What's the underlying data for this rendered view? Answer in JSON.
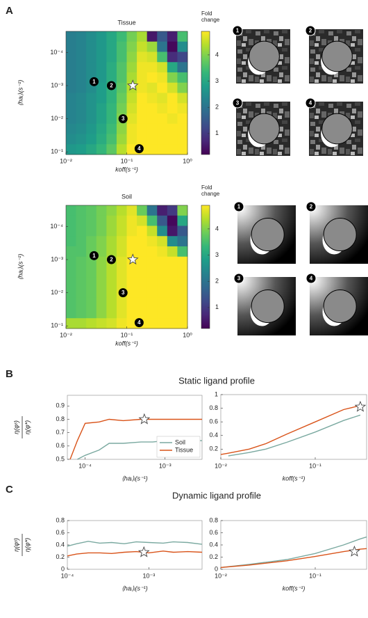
{
  "panels": [
    "A",
    "B",
    "C"
  ],
  "section_titles": [
    "Static ligand profile",
    "Dynamic ligand profile"
  ],
  "thumbnails": {
    "tissue": [
      "1",
      "2",
      "3",
      "4"
    ],
    "soil": [
      "1",
      "2",
      "3",
      "4"
    ]
  },
  "chart_data": [
    {
      "type": "heatmap",
      "title": "Tissue",
      "x_label": "koff(s⁻¹)",
      "y_label": "⟨haᵢ⟩ᵢ(s⁻¹)",
      "xscale": "log",
      "yscale": "log",
      "y_inverted": true,
      "xlim": [
        0.01,
        1
      ],
      "ylim": [
        2.3e-05,
        0.12
      ],
      "xticks": [
        {
          "value": 0.01,
          "label": "10⁻²"
        },
        {
          "value": 0.1,
          "label": "10⁻¹"
        },
        {
          "value": 1,
          "label": "10⁰"
        }
      ],
      "yticks": [
        {
          "value": 0.0001,
          "label": "10⁻⁴"
        },
        {
          "value": 0.001,
          "label": "10⁻³"
        },
        {
          "value": 0.01,
          "label": "10⁻²"
        },
        {
          "value": 0.1,
          "label": "10⁻¹"
        }
      ],
      "colorbar": {
        "label": "Fold change",
        "zlim": [
          0.2,
          4.9
        ],
        "ticks": [
          1,
          2,
          3,
          4
        ],
        "colormap": "viridis"
      },
      "z": [
        [
          2.2,
          2.3,
          2.5,
          2.7,
          3.0,
          3.4,
          3.9,
          4.3,
          0.5,
          1.5,
          0.6,
          3.5
        ],
        [
          2.2,
          2.3,
          2.5,
          2.7,
          3.0,
          3.5,
          4.0,
          4.5,
          4.2,
          2.0,
          0.3,
          2.5
        ],
        [
          2.2,
          2.3,
          2.5,
          2.7,
          3.0,
          3.5,
          4.1,
          4.7,
          4.6,
          3.5,
          0.8,
          1.2
        ],
        [
          2.2,
          2.3,
          2.5,
          2.7,
          3.1,
          3.6,
          4.2,
          4.8,
          4.8,
          4.6,
          3.0,
          2.0
        ],
        [
          2.2,
          2.3,
          2.5,
          2.7,
          3.1,
          3.6,
          4.3,
          4.8,
          4.9,
          4.8,
          4.0,
          3.5
        ],
        [
          2.2,
          2.3,
          2.5,
          2.8,
          3.2,
          3.7,
          4.4,
          4.8,
          4.7,
          4.9,
          4.6,
          4.0
        ],
        [
          2.3,
          2.4,
          2.6,
          2.8,
          3.2,
          3.8,
          4.5,
          4.9,
          4.8,
          4.7,
          4.9,
          4.6
        ],
        [
          2.3,
          2.4,
          2.6,
          2.9,
          3.3,
          3.9,
          4.6,
          4.9,
          4.9,
          4.8,
          4.9,
          4.8
        ],
        [
          2.3,
          2.4,
          2.6,
          2.9,
          3.3,
          4.0,
          4.7,
          4.9,
          4.9,
          4.9,
          4.8,
          4.9
        ],
        [
          2.4,
          2.5,
          2.7,
          3.0,
          3.4,
          4.1,
          4.8,
          4.9,
          4.9,
          4.9,
          4.9,
          4.9
        ],
        [
          2.5,
          2.6,
          2.8,
          3.1,
          3.5,
          4.2,
          4.8,
          4.9,
          4.9,
          4.9,
          4.9,
          4.9
        ],
        [
          2.7,
          2.8,
          3.0,
          3.3,
          3.7,
          4.4,
          4.9,
          4.9,
          4.9,
          4.9,
          4.9,
          4.9
        ]
      ],
      "points": [
        {
          "label": "1",
          "x": 0.029,
          "y": 0.00076
        },
        {
          "label": "2",
          "x": 0.056,
          "y": 0.001
        },
        {
          "label": "3",
          "x": 0.087,
          "y": 0.01
        },
        {
          "label": "4",
          "x": 0.16,
          "y": 0.08
        }
      ],
      "star": {
        "x": 0.126,
        "y": 0.001
      }
    },
    {
      "type": "heatmap",
      "title": "Soil",
      "x_label": "koff(s⁻¹)",
      "y_label": "⟨haᵢ⟩ᵢ(s⁻¹)",
      "xscale": "log",
      "yscale": "log",
      "y_inverted": true,
      "xlim": [
        0.01,
        1
      ],
      "ylim": [
        2.3e-05,
        0.12
      ],
      "xticks": [
        {
          "value": 0.01,
          "label": "10⁻²"
        },
        {
          "value": 0.1,
          "label": "10⁻¹"
        },
        {
          "value": 1,
          "label": "10⁰"
        }
      ],
      "yticks": [
        {
          "value": 0.0001,
          "label": "10⁻⁴"
        },
        {
          "value": 0.001,
          "label": "10⁻³"
        },
        {
          "value": 0.01,
          "label": "10⁻²"
        },
        {
          "value": 0.1,
          "label": "10⁻¹"
        }
      ],
      "colorbar": {
        "label": "Fold change",
        "zlim": [
          0.2,
          4.9
        ],
        "ticks": [
          1,
          2,
          3,
          4
        ],
        "colormap": "viridis"
      },
      "z": [
        [
          3.5,
          3.6,
          3.7,
          3.9,
          4.1,
          4.4,
          4.7,
          3.8,
          2.0,
          0.6,
          1.0,
          4.0
        ],
        [
          3.5,
          3.6,
          3.7,
          3.9,
          4.2,
          4.5,
          4.8,
          4.6,
          3.5,
          1.5,
          0.3,
          3.0
        ],
        [
          3.5,
          3.6,
          3.7,
          3.9,
          4.2,
          4.5,
          4.8,
          4.9,
          4.5,
          2.5,
          0.5,
          1.5
        ],
        [
          3.5,
          3.6,
          3.8,
          4.0,
          4.3,
          4.6,
          4.9,
          4.9,
          4.8,
          4.6,
          2.5,
          2.0
        ],
        [
          3.6,
          3.6,
          3.8,
          4.0,
          4.3,
          4.6,
          4.9,
          4.9,
          4.9,
          4.8,
          4.5,
          3.5
        ],
        [
          3.6,
          3.7,
          3.8,
          4.1,
          4.4,
          4.7,
          4.9,
          4.9,
          4.9,
          4.9,
          4.9,
          4.9
        ],
        [
          3.6,
          3.7,
          3.8,
          4.1,
          4.4,
          4.7,
          4.9,
          4.9,
          4.9,
          4.9,
          4.9,
          4.9
        ],
        [
          3.6,
          3.7,
          3.8,
          4.1,
          4.4,
          4.7,
          4.9,
          4.9,
          4.9,
          4.9,
          4.9,
          4.9
        ],
        [
          3.6,
          3.7,
          3.8,
          4.1,
          4.4,
          4.7,
          4.9,
          4.9,
          4.9,
          4.9,
          4.9,
          4.9
        ],
        [
          3.6,
          3.7,
          3.8,
          4.1,
          4.4,
          4.7,
          4.9,
          4.9,
          4.9,
          4.9,
          4.9,
          4.9
        ],
        [
          3.6,
          3.7,
          3.8,
          4.1,
          4.4,
          4.7,
          4.9,
          4.9,
          4.9,
          4.9,
          4.9,
          4.9
        ],
        [
          4.3,
          4.3,
          4.4,
          4.5,
          4.6,
          4.8,
          4.9,
          4.9,
          4.9,
          4.9,
          4.9,
          4.9
        ]
      ],
      "points": [
        {
          "label": "1",
          "x": 0.029,
          "y": 0.00076
        },
        {
          "label": "2",
          "x": 0.056,
          "y": 0.001
        },
        {
          "label": "3",
          "x": 0.087,
          "y": 0.01
        },
        {
          "label": "4",
          "x": 0.16,
          "y": 0.08
        }
      ],
      "star": {
        "x": 0.126,
        "y": 0.001
      }
    },
    {
      "type": "line",
      "xscale": "log",
      "x_label": "⟨haᵢ⟩ᵢ(s⁻¹)",
      "y_label": [
        "η(φˢ)",
        "η(φ*)"
      ],
      "xlim": [
        6e-05,
        0.0029
      ],
      "ylim": [
        0.5,
        0.98
      ],
      "xticks": [
        {
          "value": 0.0001,
          "label": "10⁻⁴"
        },
        {
          "value": 0.001,
          "label": "10⁻³"
        }
      ],
      "yticks": [
        0.5,
        0.6,
        0.7,
        0.8,
        0.9
      ],
      "x": [
        6.5e-05,
        8e-05,
        0.0001,
        0.00015,
        0.0002,
        0.0003,
        0.0005,
        0.0007,
        0.001,
        0.0015,
        0.002,
        0.0029
      ],
      "series": [
        {
          "name": "Soil",
          "color": "#7aa9a0",
          "values": [
            null,
            0.5,
            0.53,
            0.57,
            0.62,
            0.62,
            0.63,
            0.63,
            0.64,
            0.63,
            0.64,
            0.64
          ]
        },
        {
          "name": "Tissue",
          "color": "#d95319",
          "values": [
            0.5,
            0.64,
            0.77,
            0.78,
            0.8,
            0.79,
            0.8,
            0.8,
            0.8,
            0.8,
            0.8,
            0.8
          ]
        }
      ],
      "star": {
        "x": 0.00055,
        "y": 0.8
      },
      "legend": "lower right"
    },
    {
      "type": "line",
      "xscale": "log",
      "x_label": "koff(s⁻¹)",
      "xlim": [
        0.01,
        0.35
      ],
      "ylim": [
        0.05,
        1
      ],
      "xticks": [
        {
          "value": 0.01,
          "label": "10⁻²"
        },
        {
          "value": 0.1,
          "label": "10⁻¹"
        }
      ],
      "yticks": [
        0.2,
        0.4,
        0.6,
        0.8,
        1
      ],
      "x": [
        0.01,
        0.012,
        0.02,
        0.03,
        0.05,
        0.1,
        0.2,
        0.3
      ],
      "series": [
        {
          "name": "Soil",
          "color": "#7aa9a0",
          "values": [
            null,
            0.1,
            0.15,
            0.2,
            0.3,
            0.45,
            0.62,
            0.7
          ]
        },
        {
          "name": "Tissue",
          "color": "#d95319",
          "values": [
            0.12,
            0.14,
            0.2,
            0.28,
            0.42,
            0.6,
            0.78,
            0.84
          ]
        }
      ],
      "star": {
        "x": 0.3,
        "y": 0.82
      }
    },
    {
      "type": "line",
      "xscale": "log",
      "x_label": "⟨haᵢ⟩ᵢ(s⁻¹)",
      "y_label": [
        "η(φˢ)",
        "η(φ*)"
      ],
      "xlim": [
        0.0001,
        0.0045
      ],
      "ylim": [
        0,
        0.8
      ],
      "xticks": [
        {
          "value": 0.0001,
          "label": "10⁻⁴"
        },
        {
          "value": 0.001,
          "label": "10⁻³"
        }
      ],
      "yticks": [
        0,
        0.2,
        0.4,
        0.6,
        0.8
      ],
      "x": [
        0.0001,
        0.00013,
        0.00018,
        0.00025,
        0.00035,
        0.0005,
        0.0007,
        0.001,
        0.0015,
        0.002,
        0.003,
        0.0045
      ],
      "series": [
        {
          "name": "Soil",
          "color": "#7aa9a0",
          "values": [
            0.38,
            0.42,
            0.46,
            0.43,
            0.44,
            0.42,
            0.45,
            0.44,
            0.43,
            0.45,
            0.44,
            0.41
          ]
        },
        {
          "name": "Tissue",
          "color": "#d95319",
          "values": [
            0.22,
            0.25,
            0.27,
            0.27,
            0.26,
            0.28,
            0.29,
            0.27,
            0.3,
            0.28,
            0.29,
            0.28
          ]
        }
      ],
      "star": {
        "x": 0.00087,
        "y": 0.28
      }
    },
    {
      "type": "line",
      "xscale": "log",
      "x_label": "koff(s⁻¹)",
      "xlim": [
        0.01,
        0.35
      ],
      "ylim": [
        0,
        0.8
      ],
      "xticks": [
        {
          "value": 0.01,
          "label": "10⁻²"
        },
        {
          "value": 0.1,
          "label": "10⁻¹"
        }
      ],
      "yticks": [
        0,
        0.2,
        0.4,
        0.6,
        0.8
      ],
      "x": [
        0.01,
        0.02,
        0.05,
        0.1,
        0.2,
        0.3,
        0.35
      ],
      "series": [
        {
          "name": "Soil",
          "color": "#7aa9a0",
          "values": [
            0.03,
            0.08,
            0.16,
            0.26,
            0.4,
            0.5,
            0.53
          ]
        },
        {
          "name": "Tissue",
          "color": "#d95319",
          "values": [
            0.03,
            0.07,
            0.14,
            0.21,
            0.29,
            0.33,
            0.34
          ]
        }
      ],
      "star": {
        "x": 0.26,
        "y": 0.29
      }
    }
  ]
}
